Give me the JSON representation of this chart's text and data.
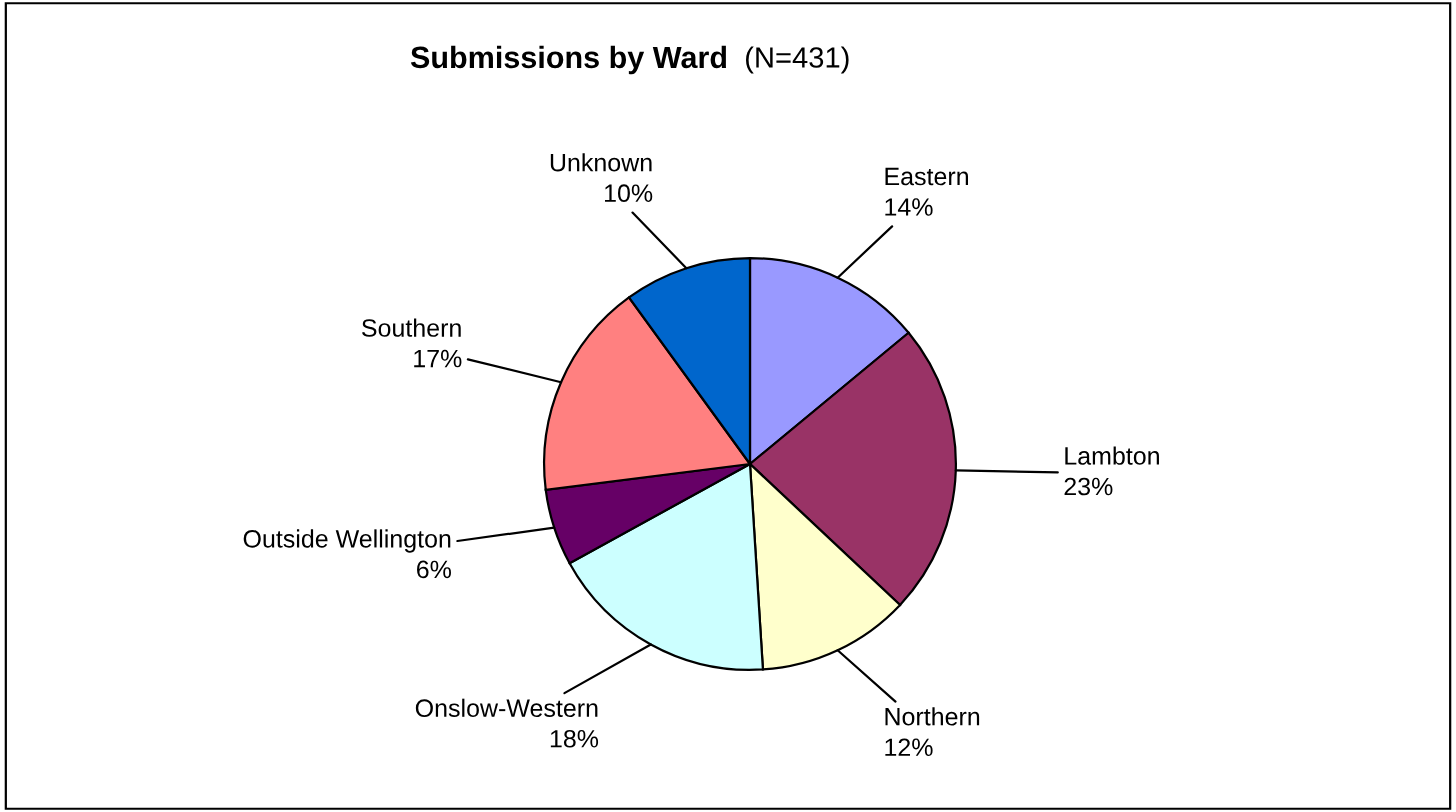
{
  "chart_data": {
    "type": "pie",
    "title": "Submissions by Ward",
    "subtitle": "(N=431)",
    "categories": [
      "Eastern",
      "Lambton",
      "Northern",
      "Onslow-Western",
      "Outside Wellington",
      "Southern",
      "Unknown"
    ],
    "values": [
      14,
      23,
      12,
      18,
      6,
      17,
      10
    ],
    "value_labels": [
      "14%",
      "23%",
      "12%",
      "18%",
      "6%",
      "17%",
      "10%"
    ],
    "colors": [
      "#9999ff",
      "#993366",
      "#ffffcc",
      "#ccffff",
      "#660066",
      "#ff8080",
      "#0066cc"
    ],
    "legend": false
  }
}
